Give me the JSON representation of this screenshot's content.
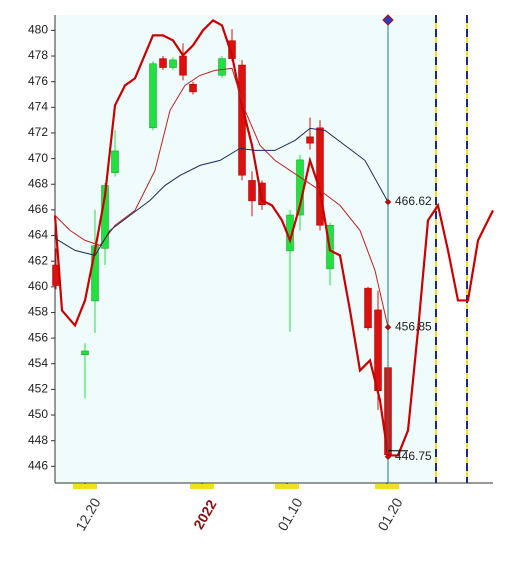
{
  "chart_data": {
    "type": "candlestick",
    "xlim": [
      0,
      43.8
    ],
    "xticks": [
      {
        "value": 3,
        "label": "12.20"
      },
      {
        "value": 14.7,
        "label": "2022"
      },
      {
        "value": 23.2,
        "label": "01.10"
      },
      {
        "value": 33.2,
        "label": "01.20"
      }
    ],
    "ylim": [
      444.7,
      481.2
    ],
    "yticks": [
      446,
      448,
      450,
      452,
      454,
      456,
      458,
      460,
      462,
      464,
      466,
      468,
      470,
      472,
      474,
      476,
      478,
      480
    ],
    "up_color": "#22e040",
    "down_color": "#dd1010",
    "candles": {
      "x": [
        0.1,
        3,
        4,
        5,
        6,
        9.8,
        10.8,
        11.8,
        12.8,
        13.8,
        16.7,
        17.7,
        18.7,
        19.7,
        20.7,
        23.5,
        24.5,
        25.5,
        26.5,
        27.5,
        31.3,
        32.3,
        33.3
      ],
      "open": [
        461.7,
        454.7,
        458.9,
        463.0,
        468.9,
        472.4,
        477.8,
        477.1,
        478.0,
        475.8,
        476.5,
        479.2,
        477.3,
        468.3,
        468.1,
        462.8,
        465.6,
        471.7,
        472.4,
        461.4,
        459.9,
        458.2,
        453.7
      ],
      "high": [
        463.0,
        455.6,
        466.0,
        468.1,
        472.2,
        477.6,
        478.0,
        477.9,
        479.0,
        476.0,
        478.0,
        480.1,
        477.7,
        469.0,
        468.3,
        466.0,
        470.3,
        473.2,
        473.0,
        465.0,
        460.0,
        459.7,
        453.8
      ],
      "low": [
        459.8,
        451.3,
        456.4,
        461.7,
        468.6,
        472.2,
        476.9,
        476.9,
        476.1,
        475.0,
        476.3,
        477.6,
        468.3,
        465.5,
        466.0,
        456.5,
        464.4,
        470.7,
        464.4,
        460.1,
        456.6,
        450.4,
        446.5
      ],
      "close": [
        460.1,
        455.0,
        463.2,
        467.9,
        470.6,
        477.4,
        477.1,
        477.7,
        476.5,
        475.2,
        477.8,
        477.8,
        468.7,
        466.7,
        466.4,
        465.6,
        469.9,
        471.2,
        464.8,
        464.8,
        456.8,
        451.9,
        446.9
      ]
    },
    "lines": [
      {
        "color": "#cc0000",
        "width": 2.2,
        "x": [
          0,
          0.7,
          2,
          3,
          4,
          5,
          6,
          7,
          8,
          9.8,
          10.8,
          11.8,
          12.8,
          13.8,
          14.8,
          15.8,
          16.7,
          17.7,
          18.7,
          19.7,
          20.7,
          21.7,
          22.7,
          23.5,
          24.5,
          25.5,
          26.5,
          27.5,
          28.5,
          29.5,
          30.5,
          31.5,
          32.5,
          33.3,
          34.3,
          35.3,
          36.3,
          37.3,
          38.3,
          39.3,
          40.3,
          41.3,
          42.3,
          43.8
        ],
        "values": [
          465.57,
          458.16,
          456.99,
          458.94,
          462.84,
          467.13,
          474.15,
          475.71,
          476.26,
          479.61,
          479.61,
          479.22,
          478.05,
          478.83,
          480.0,
          480.78,
          480.39,
          478.05,
          474.15,
          471.03,
          466.74,
          466.35,
          465.18,
          463.62,
          466.35,
          469.86,
          467.52,
          462.84,
          462.45,
          458.16,
          453.48,
          454.26,
          451.14,
          446.85,
          446.85,
          448.8,
          456.6,
          465.18,
          466.35,
          462.84,
          458.94,
          458.94,
          463.62,
          465.96
        ]
      },
      {
        "color": "#c42020",
        "width": 1,
        "x": [
          0,
          1.5,
          3,
          4.5,
          6,
          8,
          10,
          11.5,
          13,
          14.5,
          16,
          17.7,
          19,
          20.5,
          22,
          23.5,
          25,
          26.5,
          28.5,
          30.5,
          32,
          33.3
        ],
        "values": [
          465.57,
          464.4,
          463.62,
          463.23,
          464.79,
          465.96,
          469.08,
          473.76,
          475.71,
          476.49,
          476.88,
          477.04,
          473.76,
          471.03,
          469.86,
          469.08,
          468.3,
          467.52,
          466.35,
          464.4,
          461.28,
          456.85
        ]
      },
      {
        "color": "#1a2a5a",
        "width": 1,
        "x": [
          0,
          2,
          4,
          5.5,
          7.5,
          9.5,
          11,
          12.5,
          14.5,
          16.5,
          18.5,
          20,
          22,
          24,
          25.5,
          27,
          29,
          31,
          33.3
        ],
        "values": [
          463.78,
          462.84,
          462.45,
          464.4,
          465.57,
          466.74,
          467.91,
          468.69,
          469.47,
          469.86,
          470.8,
          470.64,
          470.64,
          471.42,
          472.36,
          472.2,
          471.03,
          469.86,
          466.62
        ]
      }
    ],
    "annotations": [
      {
        "x": 33.3,
        "value": 466.62
      },
      {
        "x": 33.3,
        "value": 456.85
      },
      {
        "x": 33.3,
        "value": 446.75
      }
    ],
    "cursor_x": 33.3,
    "dashed_lines": [
      38.1,
      41.2
    ]
  }
}
